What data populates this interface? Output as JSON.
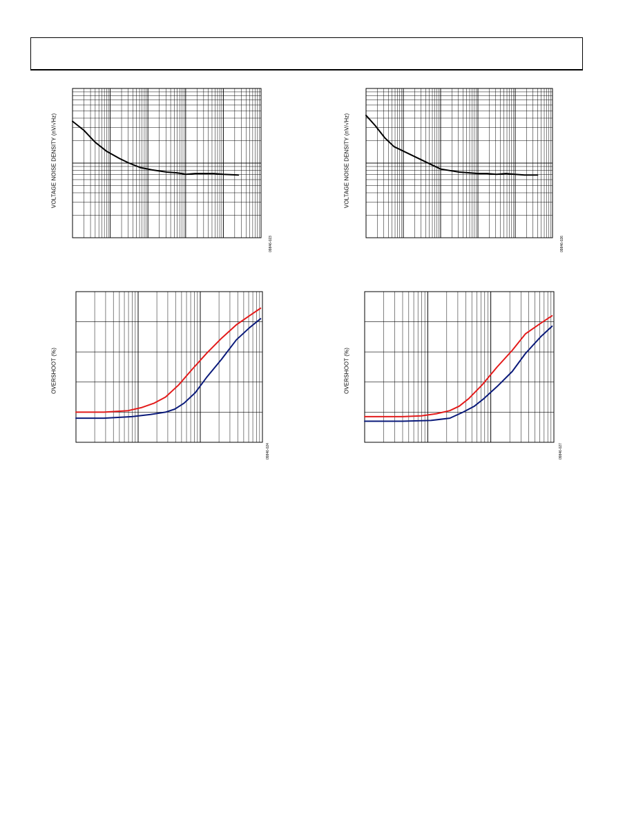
{
  "page": {
    "header": ""
  },
  "chart_data": [
    {
      "id": "c1",
      "type": "line",
      "title": "",
      "xlabel": "",
      "ylabel": "VOLTAGE NOISE DENSITY (nV/√Hz)",
      "figure_code": "09846-023",
      "x_scale": "log",
      "x_decades": 5,
      "y_scale": "log",
      "y_decades": 2,
      "xlim": [
        0,
        1
      ],
      "ylim": [
        0,
        1
      ],
      "grid": true,
      "series": [
        {
          "color": "#000000",
          "x": [
            0,
            0.06,
            0.12,
            0.18,
            0.25,
            0.3,
            0.36,
            0.42,
            0.5,
            0.55,
            0.58,
            0.6,
            0.65,
            0.75,
            0.8,
            0.88
          ],
          "y": [
            0.78,
            0.72,
            0.64,
            0.58,
            0.53,
            0.5,
            0.47,
            0.455,
            0.44,
            0.435,
            0.43,
            0.425,
            0.43,
            0.43,
            0.425,
            0.42
          ]
        }
      ]
    },
    {
      "id": "c2",
      "type": "line",
      "title": "",
      "xlabel": "",
      "ylabel": "VOLTAGE NOISE DENSITY (nV/√Hz)",
      "figure_code": "09846-026",
      "x_scale": "log",
      "x_decades": 5,
      "y_scale": "log",
      "y_decades": 2,
      "xlim": [
        0,
        1
      ],
      "ylim": [
        0,
        1
      ],
      "grid": true,
      "series": [
        {
          "color": "#000000",
          "x": [
            0,
            0.05,
            0.1,
            0.15,
            0.2,
            0.25,
            0.3,
            0.35,
            0.4,
            0.45,
            0.5,
            0.55,
            0.6,
            0.65,
            0.7,
            0.75,
            0.8,
            0.85,
            0.92
          ],
          "y": [
            0.82,
            0.75,
            0.67,
            0.61,
            0.58,
            0.55,
            0.52,
            0.49,
            0.46,
            0.45,
            0.44,
            0.435,
            0.43,
            0.43,
            0.425,
            0.43,
            0.425,
            0.42,
            0.42
          ]
        }
      ]
    },
    {
      "id": "c3",
      "type": "line",
      "title": "",
      "xlabel": "",
      "ylabel": "OVERSHOOT (%)",
      "figure_code": "09846-024",
      "x_scale": "log",
      "x_decades": 3,
      "y_scale": "linear",
      "y_divisions": 5,
      "xlim": [
        0,
        1
      ],
      "ylim": [
        0,
        1
      ],
      "grid": true,
      "series": [
        {
          "color": "#e31b1b",
          "x": [
            0,
            0.15,
            0.28,
            0.35,
            0.42,
            0.48,
            0.55,
            0.62,
            0.7,
            0.78,
            0.86,
            0.93,
            0.99
          ],
          "y": [
            0.2,
            0.2,
            0.21,
            0.23,
            0.26,
            0.3,
            0.38,
            0.48,
            0.59,
            0.69,
            0.78,
            0.84,
            0.89
          ]
        },
        {
          "color": "#0a1a7a",
          "x": [
            0,
            0.15,
            0.3,
            0.4,
            0.48,
            0.53,
            0.58,
            0.64,
            0.7,
            0.78,
            0.86,
            0.93,
            0.99
          ],
          "y": [
            0.16,
            0.16,
            0.17,
            0.185,
            0.2,
            0.22,
            0.26,
            0.33,
            0.43,
            0.55,
            0.68,
            0.76,
            0.82
          ]
        }
      ]
    },
    {
      "id": "c4",
      "type": "line",
      "title": "",
      "xlabel": "",
      "ylabel": "OVERSHOOT (%)",
      "figure_code": "09846-027",
      "x_scale": "log",
      "x_decades": 3,
      "y_scale": "linear",
      "y_divisions": 5,
      "xlim": [
        0,
        1
      ],
      "ylim": [
        0,
        1
      ],
      "grid": true,
      "series": [
        {
          "color": "#e31b1b",
          "x": [
            0,
            0.2,
            0.3,
            0.38,
            0.45,
            0.5,
            0.55,
            0.62,
            0.7,
            0.78,
            0.85,
            0.93,
            0.99
          ],
          "y": [
            0.17,
            0.17,
            0.175,
            0.19,
            0.21,
            0.24,
            0.29,
            0.38,
            0.5,
            0.61,
            0.72,
            0.79,
            0.84
          ]
        },
        {
          "color": "#0a1a7a",
          "x": [
            0,
            0.2,
            0.35,
            0.45,
            0.52,
            0.58,
            0.63,
            0.7,
            0.78,
            0.85,
            0.93,
            0.99
          ],
          "y": [
            0.14,
            0.14,
            0.145,
            0.16,
            0.2,
            0.24,
            0.29,
            0.37,
            0.47,
            0.59,
            0.7,
            0.77
          ]
        }
      ]
    }
  ]
}
